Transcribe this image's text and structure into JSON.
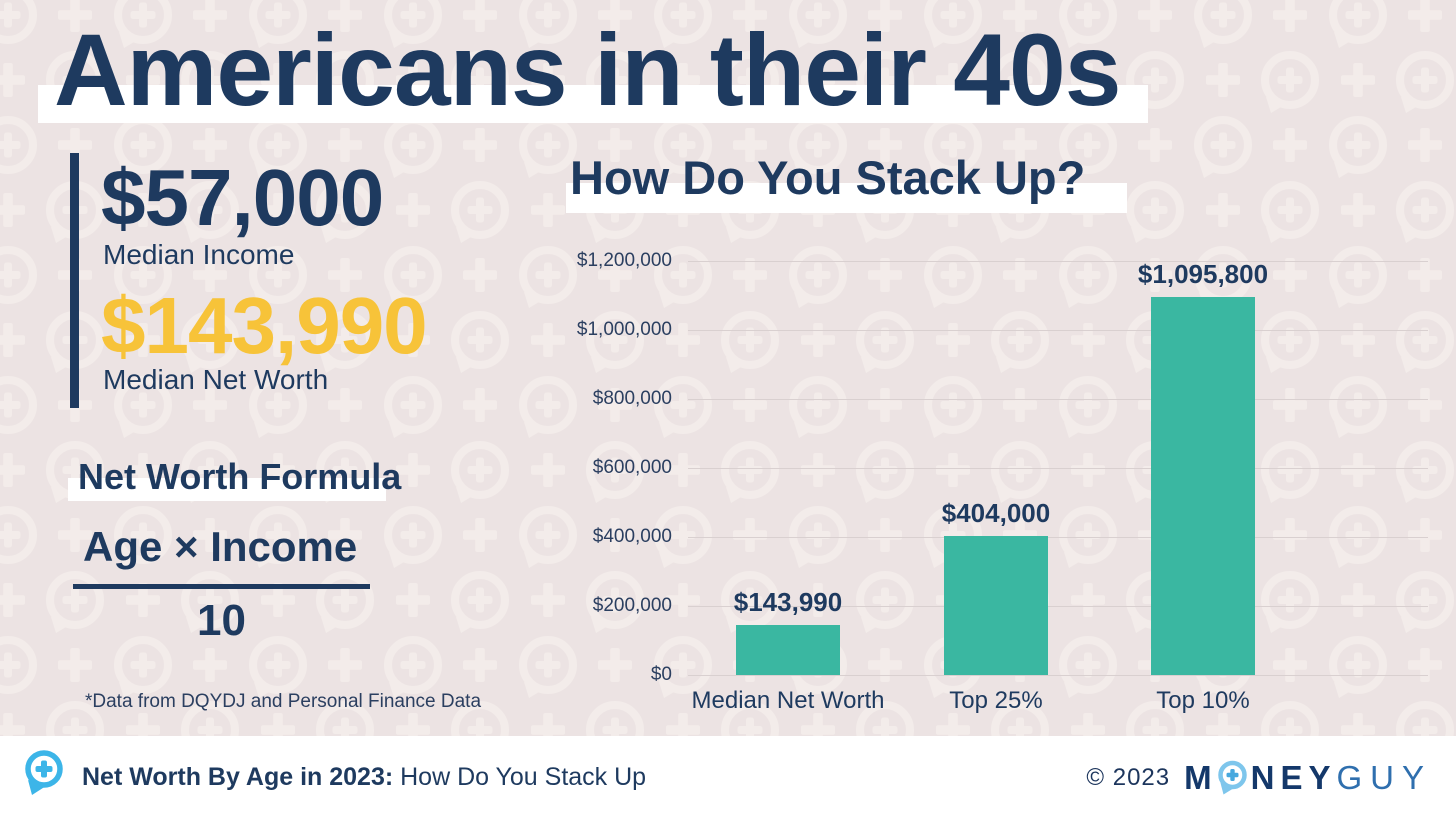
{
  "header": {
    "title": "Americans in their 40s"
  },
  "stats": {
    "median_income_value": "$57,000",
    "median_income_label": "Median Income",
    "median_net_worth_value": "$143,990",
    "median_net_worth_label": "Median Net Worth"
  },
  "formula": {
    "heading": "Net Worth Formula",
    "numerator": "Age × Income",
    "denominator": "10",
    "footnote": "*Data from DQYDJ and Personal Finance Data"
  },
  "chart_data": {
    "type": "bar",
    "title": "How Do You Stack Up?",
    "categories": [
      "Median Net Worth",
      "Top 25%",
      "Top 10%"
    ],
    "values": [
      143990,
      404000,
      1095800
    ],
    "value_labels": [
      "$143,990",
      "$404,000",
      "$1,095,800"
    ],
    "xlabel": "",
    "ylabel": "",
    "ylim": [
      0,
      1200000
    ],
    "ytick_step": 200000,
    "ytick_labels": [
      "$0",
      "$200,000",
      "$400,000",
      "$600,000",
      "$800,000",
      "$1,000,000",
      "$1,200,000"
    ],
    "bar_color": "#3ab7a1",
    "grid": true,
    "legend": false
  },
  "footer": {
    "title_bold": "Net Worth By Age in 2023:",
    "title_regular": " How Do You Stack Up",
    "copyright": "© 2023",
    "logo_m": "M",
    "logo_ney": "NEY",
    "logo_guy": "GUY"
  },
  "icons": {
    "footer_logo": "chat-bubble-plus",
    "brand_o": "chat-bubble-plus",
    "watermark": "chat-bubble-plus-pattern"
  },
  "colors": {
    "background": "#ece3e3",
    "watermark": "#f3ecea",
    "navy": "#1e3a5f",
    "gold": "#f7c339",
    "teal": "#3ab7a1",
    "gridline": "#d9d0d0",
    "footer_icon_blue": "#3cb5e8",
    "logo_light_blue": "#7ec6ec",
    "logo_guy_blue": "#2f6fae"
  }
}
